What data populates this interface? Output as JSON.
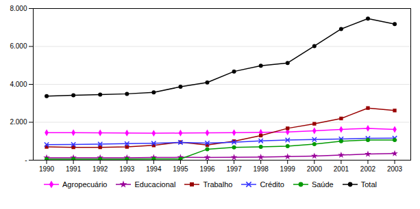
{
  "chart_data": {
    "type": "line",
    "x": [
      1990,
      1991,
      1992,
      1993,
      1994,
      1995,
      1996,
      1997,
      1998,
      1999,
      2000,
      2001,
      2002,
      2003
    ],
    "series": [
      {
        "name": "Agropecuário",
        "color": "#FF00FF",
        "marker": "diamond",
        "values": [
          1450,
          1450,
          1440,
          1430,
          1420,
          1430,
          1440,
          1450,
          1470,
          1490,
          1550,
          1620,
          1680,
          1620
        ]
      },
      {
        "name": "Educacional",
        "color": "#990099",
        "marker": "star",
        "values": [
          130,
          130,
          130,
          130,
          140,
          150,
          140,
          150,
          160,
          190,
          220,
          270,
          320,
          350
        ]
      },
      {
        "name": "Trabalho",
        "color": "#990000",
        "marker": "square",
        "values": [
          700,
          680,
          680,
          700,
          780,
          950,
          800,
          1000,
          1300,
          1680,
          1920,
          2200,
          2750,
          2620
        ]
      },
      {
        "name": "Crédito",
        "color": "#3333FF",
        "marker": "x",
        "values": [
          820,
          830,
          850,
          870,
          890,
          940,
          900,
          950,
          1020,
          1060,
          1090,
          1120,
          1150,
          1160
        ]
      },
      {
        "name": "Saúde",
        "color": "#009900",
        "marker": "circle",
        "values": [
          50,
          50,
          50,
          55,
          60,
          65,
          580,
          680,
          700,
          740,
          850,
          1000,
          1060,
          1060
        ]
      },
      {
        "name": "Total",
        "color": "#000000",
        "marker": "circle",
        "values": [
          3380,
          3420,
          3460,
          3500,
          3580,
          3870,
          4100,
          4680,
          4980,
          5130,
          6020,
          6920,
          7470,
          7180
        ]
      }
    ],
    "xlim": [
      1989.5,
      2003.6
    ],
    "xticks": [
      1990,
      1991,
      1992,
      1993,
      1994,
      1995,
      1996,
      1997,
      1998,
      1999,
      2000,
      2001,
      2002,
      2003
    ],
    "ylim": [
      0,
      8000
    ],
    "yticks": [
      {
        "value": 0,
        "label": "-"
      },
      {
        "value": 2000,
        "label": "2.000"
      },
      {
        "value": 4000,
        "label": "4.000"
      },
      {
        "value": 6000,
        "label": "6.000"
      },
      {
        "value": 8000,
        "label": "8.000"
      }
    ],
    "grid": true,
    "legend": "bottom"
  }
}
